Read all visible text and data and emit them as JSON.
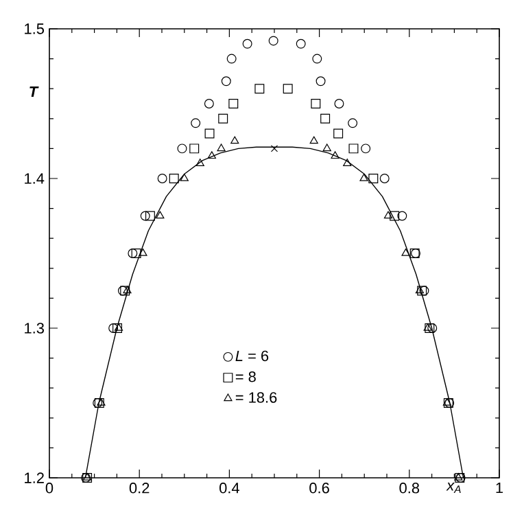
{
  "chart_data": {
    "type": "scatter",
    "xlabel": "x$_{A}$",
    "ylabel": "T",
    "xlim": [
      0,
      1
    ],
    "ylim": [
      1.2,
      1.5
    ],
    "xticks": [
      0,
      0.2,
      0.4,
      0.6,
      0.8,
      1
    ],
    "yticks": [
      1.2,
      1.3,
      1.4,
      1.5
    ],
    "grid": false,
    "legend": "bottom",
    "series": [
      {
        "name": "*L* = 6",
        "color": "#000000",
        "marker": "circle",
        "x": [
          0.081,
          0.107,
          0.142,
          0.163,
          0.185,
          0.213,
          0.251,
          0.295,
          0.325,
          0.355,
          0.393,
          0.405,
          0.44,
          0.498,
          0.559,
          0.595,
          0.603,
          0.644,
          0.674,
          0.703,
          0.745,
          0.784,
          0.814,
          0.833,
          0.851,
          0.889,
          0.914
        ],
        "values": [
          1.2,
          1.25,
          1.3,
          1.325,
          1.35,
          1.375,
          1.4,
          1.42,
          1.437,
          1.45,
          1.465,
          1.48,
          1.49,
          1.492,
          1.49,
          1.48,
          1.465,
          1.45,
          1.437,
          1.42,
          1.4,
          1.375,
          1.35,
          1.325,
          1.3,
          1.25,
          1.2
        ]
      },
      {
        "name": "= 8",
        "color": "#000000",
        "marker": "square",
        "x": [
          0.084,
          0.111,
          0.151,
          0.168,
          0.193,
          0.224,
          0.277,
          0.322,
          0.356,
          0.386,
          0.409,
          0.467,
          0.53,
          0.592,
          0.613,
          0.642,
          0.676,
          0.72,
          0.767,
          0.812,
          0.828,
          0.845,
          0.887,
          0.912
        ],
        "values": [
          1.2,
          1.25,
          1.3,
          1.325,
          1.35,
          1.375,
          1.4,
          1.42,
          1.43,
          1.44,
          1.45,
          1.46,
          1.46,
          1.45,
          1.44,
          1.43,
          1.42,
          1.4,
          1.375,
          1.35,
          1.325,
          1.3,
          1.25,
          1.2
        ]
      },
      {
        "name": "= 18.6",
        "color": "#000000",
        "marker": "triangle",
        "x": [
          0.084,
          0.115,
          0.154,
          0.173,
          0.208,
          0.246,
          0.3,
          0.335,
          0.361,
          0.382,
          0.412,
          0.588,
          0.617,
          0.635,
          0.662,
          0.699,
          0.753,
          0.792,
          0.823,
          0.841,
          0.884,
          0.909
        ],
        "values": [
          1.2,
          1.25,
          1.3,
          1.325,
          1.35,
          1.375,
          1.4,
          1.41,
          1.415,
          1.42,
          1.425,
          1.425,
          1.42,
          1.415,
          1.41,
          1.4,
          1.375,
          1.35,
          1.325,
          1.3,
          1.25,
          1.2
        ]
      },
      {
        "type": "line",
        "color": "#000000",
        "marker": "none",
        "x": [
          0.08,
          0.11,
          0.15,
          0.185,
          0.22,
          0.26,
          0.3,
          0.34,
          0.38,
          0.42,
          0.46,
          0.5,
          0.54,
          0.58,
          0.62,
          0.66,
          0.7,
          0.74,
          0.78,
          0.815,
          0.85,
          0.89,
          0.92
        ],
        "values": [
          1.2,
          1.25,
          1.3,
          1.336,
          1.365,
          1.388,
          1.403,
          1.412,
          1.417,
          1.42,
          1.421,
          1.421,
          1.421,
          1.42,
          1.417,
          1.412,
          1.403,
          1.388,
          1.365,
          1.336,
          1.3,
          1.25,
          1.2
        ]
      },
      {
        "color": "#000000",
        "marker": "cross",
        "x": [
          0.5
        ],
        "values": [
          1.42
        ]
      }
    ]
  }
}
